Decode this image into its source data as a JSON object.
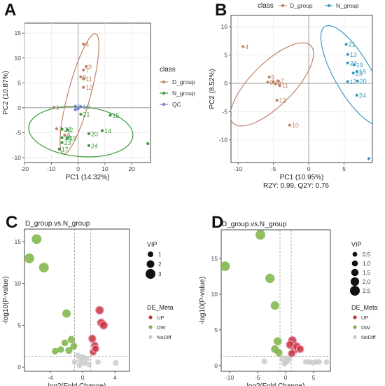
{
  "panels": [
    {
      "letter": "A",
      "type": "scatter",
      "xlabel": "PC1 (14.32%)",
      "ylabel": "PC2 (10.87%)",
      "xlim": [
        -20,
        27
      ],
      "ylim": [
        -11,
        17
      ],
      "xticks": [
        -20,
        -10,
        0,
        10,
        20
      ],
      "yticks": [
        -10,
        -5,
        0,
        5,
        10,
        15
      ],
      "grid": true,
      "legend": {
        "title": "class",
        "position": "right",
        "entries": [
          {
            "label": "D_group",
            "color": "#c0826a"
          },
          {
            "label": "N_group",
            "color": "#3d9a3d"
          },
          {
            "label": "QC",
            "color": "#6f7fc8"
          }
        ]
      },
      "series": [
        {
          "name": "D_group",
          "color": "#c0826a",
          "points": [
            {
              "x": 2,
              "y": 12.8,
              "label": "4"
            },
            {
              "x": 3,
              "y": 8.3,
              "label": "9"
            },
            {
              "x": 2,
              "y": 7.6,
              "label": "7"
            },
            {
              "x": 1,
              "y": 6.2,
              "label": "6"
            },
            {
              "x": 2,
              "y": 5.8,
              "label": "11"
            },
            {
              "x": 2,
              "y": 4.1,
              "label": "12"
            },
            {
              "x": -9,
              "y": 0.1,
              "label": "1"
            },
            {
              "x": -8,
              "y": -4.2,
              "label": "3"
            },
            {
              "x": -5,
              "y": -5.5,
              "label": "8"
            }
          ],
          "ellipse": {
            "cx": 0.5,
            "cy": 2.8,
            "rx": 4.2,
            "ry": 12.5,
            "angle": 15
          }
        },
        {
          "name": "N_group",
          "color": "#3d9a3d",
          "points": [
            {
              "x": 1,
              "y": -1.3,
              "label": "21"
            },
            {
              "x": 12,
              "y": -1.5,
              "label": "15"
            },
            {
              "x": -6,
              "y": -4.3,
              "label": "22"
            },
            {
              "x": -4,
              "y": -4.4,
              "label": "2"
            },
            {
              "x": 9,
              "y": -4.6,
              "label": "14"
            },
            {
              "x": 4,
              "y": -5.2,
              "label": "20"
            },
            {
              "x": -6,
              "y": -6.0,
              "label": "18"
            },
            {
              "x": -4,
              "y": -6.1,
              "label": "19"
            },
            {
              "x": -6,
              "y": -7.0,
              "label": "23"
            },
            {
              "x": 4,
              "y": -7.6,
              "label": "24"
            },
            {
              "x": -7,
              "y": -8.3,
              "label": "17"
            },
            {
              "x": 26,
              "y": -7.2,
              "label": "1"
            }
          ],
          "ellipse": {
            "cx": 1,
            "cy": -4.8,
            "rx": 19.5,
            "ry": 5.0,
            "angle": 5
          }
        },
        {
          "name": "QC",
          "color": "#6f7fc8",
          "points": [
            {
              "x": -1,
              "y": 0.3,
              "label": "5"
            },
            {
              "x": 1,
              "y": 0.2,
              "label": "10"
            },
            {
              "x": 0,
              "y": -0.2,
              "label": ""
            },
            {
              "x": -1,
              "y": -0.4,
              "label": ""
            }
          ],
          "ellipse": null
        }
      ]
    },
    {
      "letter": "B",
      "type": "scatter",
      "xlabel": "PC1 (10.95%)",
      "ylabel": "PC2 (8.52%)",
      "subtitle": "R2Y: 0.99, Q2Y: 0.76",
      "xlim": [
        -11,
        9
      ],
      "ylim": [
        -14,
        12
      ],
      "xticks": [
        -10,
        -5,
        0,
        5
      ],
      "yticks": [
        -10,
        -5,
        0,
        5,
        10
      ],
      "grid": true,
      "legend": {
        "title": "class",
        "position": "top",
        "entries": [
          {
            "label": "D_group",
            "color": "#c0826a"
          },
          {
            "label": "N_group",
            "color": "#3a9bc1"
          }
        ]
      },
      "series": [
        {
          "name": "D_group",
          "color": "#c0826a",
          "points": [
            {
              "x": -9.3,
              "y": 6.5,
              "label": "4"
            },
            {
              "x": -5.6,
              "y": 1.1,
              "label": "5"
            },
            {
              "x": -5.8,
              "y": 0.2,
              "label": "9"
            },
            {
              "x": -5.0,
              "y": 0.3,
              "label": "6"
            },
            {
              "x": -4.3,
              "y": 0.4,
              "label": "7"
            },
            {
              "x": -4.7,
              "y": -0.1,
              "label": "8"
            },
            {
              "x": -4.1,
              "y": -0.4,
              "label": "11"
            },
            {
              "x": -4.5,
              "y": -3.0,
              "label": "12"
            },
            {
              "x": -2.7,
              "y": -7.4,
              "label": "10"
            }
          ],
          "ellipse": {
            "cx": -5.2,
            "cy": -0.2,
            "rx": 3.0,
            "ry": 9.7,
            "angle": 45
          }
        },
        {
          "name": "N_group",
          "color": "#3a9bc1",
          "points": [
            {
              "x": 5.3,
              "y": 6.9,
              "label": "21"
            },
            {
              "x": 5.5,
              "y": 5.1,
              "label": "13"
            },
            {
              "x": 5.5,
              "y": 3.6,
              "label": "22"
            },
            {
              "x": 6.4,
              "y": 3.3,
              "label": "19"
            },
            {
              "x": 6.8,
              "y": 2.1,
              "label": "18"
            },
            {
              "x": 6.3,
              "y": 1.8,
              "label": "23"
            },
            {
              "x": 6.9,
              "y": 0.4,
              "label": "20"
            },
            {
              "x": 5.5,
              "y": 0.3,
              "label": "17"
            },
            {
              "x": 6.8,
              "y": -2.1,
              "label": "24"
            },
            {
              "x": 8.5,
              "y": -13.3,
              "label": "16"
            }
          ],
          "ellipse": {
            "cx": 6.3,
            "cy": 1.4,
            "rx": 2.6,
            "ry": 10.0,
            "angle": -30
          }
        }
      ]
    },
    {
      "letter": "C",
      "type": "scatter",
      "title": "D_group.vs.N_group",
      "xlabel": "log2(Fold Change)",
      "ylabel": "-log10(P-value)",
      "xlim": [
        -7.2,
        5.8
      ],
      "ylim": [
        -0.5,
        16.5
      ],
      "xticks": [
        -4,
        0,
        4
      ],
      "yticks": [
        0,
        5,
        10,
        15
      ],
      "grid": false,
      "vlines": [
        -1,
        1
      ],
      "hline": 1.3,
      "legend_vip": {
        "title": "VIP",
        "entries": [
          {
            "label": "1",
            "size": 1
          },
          {
            "label": "2",
            "size": 2
          },
          {
            "label": "3",
            "size": 3
          }
        ]
      },
      "legend_meta": {
        "title": "DE_Meta",
        "entries": [
          {
            "label": "UP",
            "color": "#c8313b"
          },
          {
            "label": "DW",
            "color": "#7db446"
          },
          {
            "label": "NoDiff",
            "color": "#c8c8c8"
          }
        ]
      },
      "points": [
        {
          "x": -5.7,
          "y": 15.3,
          "vip": 3.0,
          "cls": "DW"
        },
        {
          "x": -6.6,
          "y": 13.0,
          "vip": 3.0,
          "cls": "DW"
        },
        {
          "x": -4.8,
          "y": 11.9,
          "vip": 3.0,
          "cls": "DW"
        },
        {
          "x": -2.0,
          "y": 6.4,
          "vip": 2.3,
          "cls": "DW"
        },
        {
          "x": -1.4,
          "y": 3.3,
          "vip": 1.8,
          "cls": "DW"
        },
        {
          "x": -2.2,
          "y": 2.9,
          "vip": 1.6,
          "cls": "DW"
        },
        {
          "x": -1.1,
          "y": 2.5,
          "vip": 1.6,
          "cls": "DW"
        },
        {
          "x": -2.7,
          "y": 2.1,
          "vip": 1.5,
          "cls": "DW"
        },
        {
          "x": -3.4,
          "y": 1.9,
          "vip": 1.5,
          "cls": "DW"
        },
        {
          "x": -1.7,
          "y": 2.0,
          "vip": 1.7,
          "cls": "DW"
        },
        {
          "x": 2.1,
          "y": 6.8,
          "vip": 2.2,
          "cls": "UP"
        },
        {
          "x": 2.3,
          "y": 5.3,
          "vip": 2.1,
          "cls": "UP"
        },
        {
          "x": 2.6,
          "y": 5.0,
          "vip": 2.1,
          "cls": "UP"
        },
        {
          "x": 1.2,
          "y": 3.4,
          "vip": 1.9,
          "cls": "UP"
        },
        {
          "x": 1.5,
          "y": 2.6,
          "vip": 1.7,
          "cls": "UP"
        },
        {
          "x": 1.3,
          "y": 1.8,
          "vip": 1.5,
          "cls": "UP"
        },
        {
          "x": 1.6,
          "y": 2.2,
          "vip": 1.6,
          "cls": "UP"
        },
        {
          "x": -0.6,
          "y": 1.4,
          "vip": 1.2,
          "cls": "NoDiff"
        },
        {
          "x": -0.3,
          "y": 0.8,
          "vip": 1.1,
          "cls": "NoDiff"
        },
        {
          "x": 0.2,
          "y": 0.5,
          "vip": 1.1,
          "cls": "NoDiff"
        },
        {
          "x": 0.5,
          "y": 1.0,
          "vip": 1.2,
          "cls": "NoDiff"
        },
        {
          "x": -1.0,
          "y": 0.6,
          "vip": 1.1,
          "cls": "NoDiff"
        },
        {
          "x": 0.8,
          "y": 0.3,
          "vip": 1.0,
          "cls": "NoDiff"
        },
        {
          "x": -0.4,
          "y": 0.2,
          "vip": 1.0,
          "cls": "NoDiff"
        },
        {
          "x": 0.0,
          "y": 1.2,
          "vip": 1.1,
          "cls": "NoDiff"
        },
        {
          "x": 1.9,
          "y": 0.6,
          "vip": 1.0,
          "cls": "NoDiff"
        },
        {
          "x": 4.1,
          "y": 0.5,
          "vip": 1.1,
          "cls": "NoDiff"
        }
      ]
    },
    {
      "letter": "D",
      "type": "scatter",
      "title": "D_group.vs.N_group",
      "xlabel": "log2(Fold Change)",
      "ylabel": "-log10(P-value)",
      "xlim": [
        -11.5,
        8
      ],
      "ylim": [
        -0.8,
        19
      ],
      "xticks": [
        -10,
        -5,
        0,
        5
      ],
      "yticks": [
        0,
        5,
        10,
        15
      ],
      "grid": false,
      "vlines": [
        -1,
        1
      ],
      "hline": 1.3,
      "legend_vip": {
        "title": "VIP",
        "entries": [
          {
            "label": "0.5",
            "size": 0.5
          },
          {
            "label": "1.0",
            "size": 1.0
          },
          {
            "label": "1.5",
            "size": 1.5
          },
          {
            "label": "2.0",
            "size": 2.0
          },
          {
            "label": "2.5",
            "size": 2.5
          }
        ]
      },
      "legend_meta": {
        "title": "DE_Meta",
        "entries": [
          {
            "label": "UP",
            "color": "#c8313b"
          },
          {
            "label": "DW",
            "color": "#7db446"
          },
          {
            "label": "NoDiff",
            "color": "#c8c8c8"
          }
        ]
      },
      "points": [
        {
          "x": -4.5,
          "y": 18.3,
          "vip": 2.5,
          "cls": "DW"
        },
        {
          "x": -10.8,
          "y": 13.9,
          "vip": 2.4,
          "cls": "DW"
        },
        {
          "x": -2.8,
          "y": 12.2,
          "vip": 2.3,
          "cls": "DW"
        },
        {
          "x": -1.9,
          "y": 8.4,
          "vip": 2.0,
          "cls": "DW"
        },
        {
          "x": -1.4,
          "y": 3.4,
          "vip": 1.8,
          "cls": "DW"
        },
        {
          "x": -1.9,
          "y": 2.3,
          "vip": 1.7,
          "cls": "DW"
        },
        {
          "x": -1.2,
          "y": 1.8,
          "vip": 1.5,
          "cls": "DW"
        },
        {
          "x": 1.2,
          "y": 3.5,
          "vip": 1.9,
          "cls": "UP"
        },
        {
          "x": 0.8,
          "y": 2.9,
          "vip": 1.7,
          "cls": "UP"
        },
        {
          "x": 1.6,
          "y": 2.2,
          "vip": 1.6,
          "cls": "UP"
        },
        {
          "x": 2.0,
          "y": 2.7,
          "vip": 1.6,
          "cls": "UP"
        },
        {
          "x": 1.1,
          "y": 1.7,
          "vip": 1.4,
          "cls": "UP"
        },
        {
          "x": 2.6,
          "y": 2.3,
          "vip": 1.5,
          "cls": "UP"
        },
        {
          "x": -0.5,
          "y": 1.0,
          "vip": 1.2,
          "cls": "NoDiff"
        },
        {
          "x": 0.3,
          "y": 0.6,
          "vip": 1.1,
          "cls": "NoDiff"
        },
        {
          "x": -0.2,
          "y": 0.3,
          "vip": 1.0,
          "cls": "NoDiff"
        },
        {
          "x": 0.6,
          "y": 1.1,
          "vip": 1.1,
          "cls": "NoDiff"
        },
        {
          "x": 3.6,
          "y": 0.5,
          "vip": 0.8,
          "cls": "NoDiff"
        },
        {
          "x": 4.2,
          "y": 0.5,
          "vip": 0.8,
          "cls": "NoDiff"
        },
        {
          "x": 4.8,
          "y": 0.4,
          "vip": 0.8,
          "cls": "NoDiff"
        },
        {
          "x": 5.4,
          "y": 0.5,
          "vip": 0.8,
          "cls": "NoDiff"
        },
        {
          "x": 6.0,
          "y": 0.5,
          "vip": 0.8,
          "cls": "NoDiff"
        },
        {
          "x": 7.3,
          "y": 0.5,
          "vip": 0.8,
          "cls": "NoDiff"
        },
        {
          "x": -3.8,
          "y": 0.6,
          "vip": 0.9,
          "cls": "NoDiff"
        }
      ]
    }
  ]
}
